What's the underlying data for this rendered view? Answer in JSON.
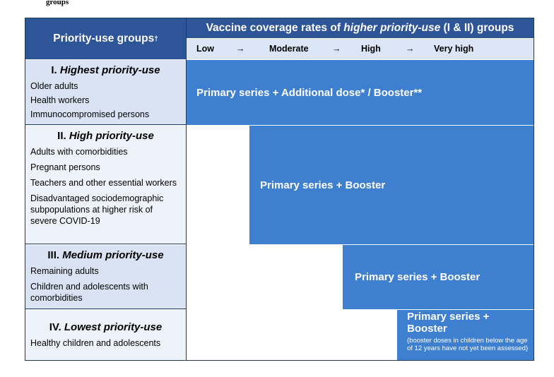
{
  "caption": "groups",
  "header": {
    "left_title": "Priority-use groups",
    "left_mark": "†",
    "right_pre": "Vaccine coverage rates of ",
    "right_em": "higher priority-use",
    "right_post": " (I & II) groups"
  },
  "scale": {
    "low": "Low",
    "moderate": "Moderate",
    "high": "High",
    "very_high": "Very high",
    "arrow": "→"
  },
  "groups": [
    {
      "num": "I. ",
      "name": "Highest priority-use",
      "items": [
        "Older adults",
        "Health workers",
        "Immunocompromised persons"
      ]
    },
    {
      "num": "II. ",
      "name": "High priority-use",
      "items": [
        "Adults with comorbidities",
        "Pregnant persons",
        "Teachers and other essential workers",
        "Disadvantaged sociodemographic subpopulations at higher risk of severe COVID-19"
      ]
    },
    {
      "num": "III. ",
      "name": "Medium priority-use",
      "items": [
        "Remaining adults",
        "Children and adolescents with comorbidities"
      ]
    },
    {
      "num": "IV. ",
      "name": "Lowest priority-use",
      "items": [
        "Healthy children and adolescents"
      ]
    }
  ],
  "bars": {
    "b1": "Primary series + Additional dose* / Booster**",
    "b2": "Primary series + Booster",
    "b3": "Primary series + Booster",
    "b4": "Primary series + Booster",
    "b4_note": "(booster doses in children below the age of 12 years have not yet been assessed)"
  },
  "colors": {
    "header": "#2e5597",
    "scale_bg": "#dae6f6",
    "bar": "#3f7fd0"
  }
}
